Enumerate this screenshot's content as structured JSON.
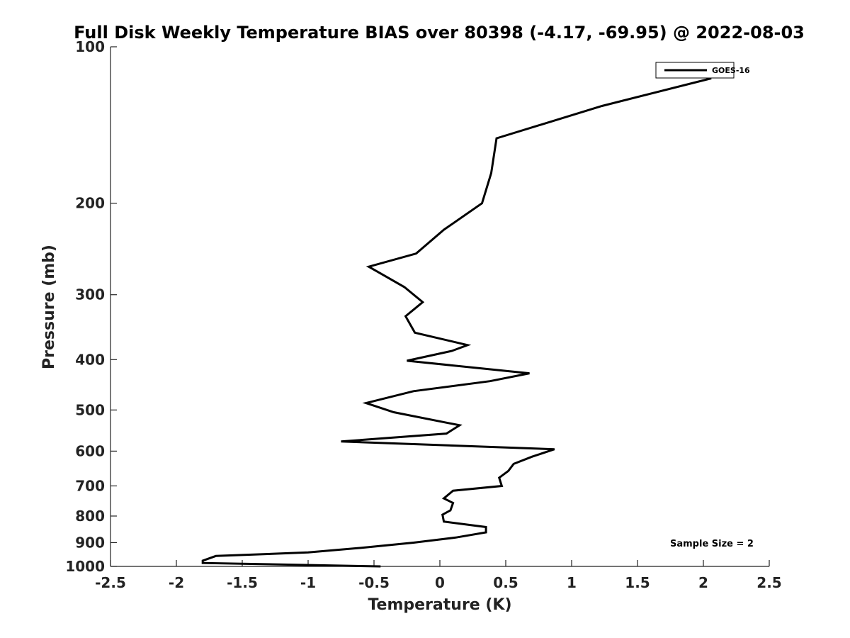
{
  "chart_data": {
    "type": "line",
    "title": "Full Disk Weekly Temperature BIAS over 80398 (-4.17, -69.95) @ 2022-08-03",
    "xlabel": "Temperature (K)",
    "ylabel": "Pressure (mb)",
    "xlim": [
      -2.5,
      2.5
    ],
    "ylim": [
      1000,
      100
    ],
    "yscale": "log",
    "xticks": [
      -2.5,
      -2,
      -1.5,
      -1,
      -0.5,
      0,
      0.5,
      1,
      1.5,
      2,
      2.5
    ],
    "xtick_labels": [
      "-2.5",
      "-2",
      "-1.5",
      "-1",
      "-0.5",
      "0",
      "0.5",
      "1",
      "1.5",
      "2",
      "2.5"
    ],
    "yticks": [
      100,
      200,
      300,
      400,
      500,
      600,
      700,
      800,
      900,
      1000
    ],
    "ytick_labels": [
      "100",
      "200",
      "300",
      "400",
      "500",
      "600",
      "700",
      "800",
      "900",
      "1000"
    ],
    "legend_position": "top-right",
    "annotation": "Sample Size = 2",
    "series": [
      {
        "name": "GOES-16",
        "color": "#000000",
        "x": [
          2.06,
          1.23,
          0.43,
          0.39,
          0.32,
          0.03,
          -0.18,
          -0.54,
          -0.27,
          -0.13,
          -0.26,
          -0.19,
          0.21,
          0.09,
          -0.25,
          0.68,
          0.38,
          -0.2,
          -0.56,
          -0.35,
          0.15,
          0.05,
          -0.75,
          0.87,
          0.7,
          0.56,
          0.52,
          0.45,
          0.47,
          0.1,
          0.03,
          0.1,
          0.08,
          0.02,
          0.03,
          0.35,
          0.35,
          0.12,
          -0.2,
          -0.58,
          -1.0,
          -1.7,
          -1.8,
          -1.8,
          -0.45
        ],
        "y": [
          115,
          130,
          150,
          175,
          200,
          225,
          250,
          265,
          290,
          310,
          330,
          355,
          375,
          385,
          402,
          425,
          440,
          460,
          485,
          505,
          535,
          555,
          575,
          595,
          615,
          635,
          655,
          675,
          700,
          715,
          740,
          755,
          780,
          795,
          820,
          840,
          860,
          880,
          900,
          920,
          940,
          955,
          975,
          985,
          1000
        ]
      }
    ]
  }
}
